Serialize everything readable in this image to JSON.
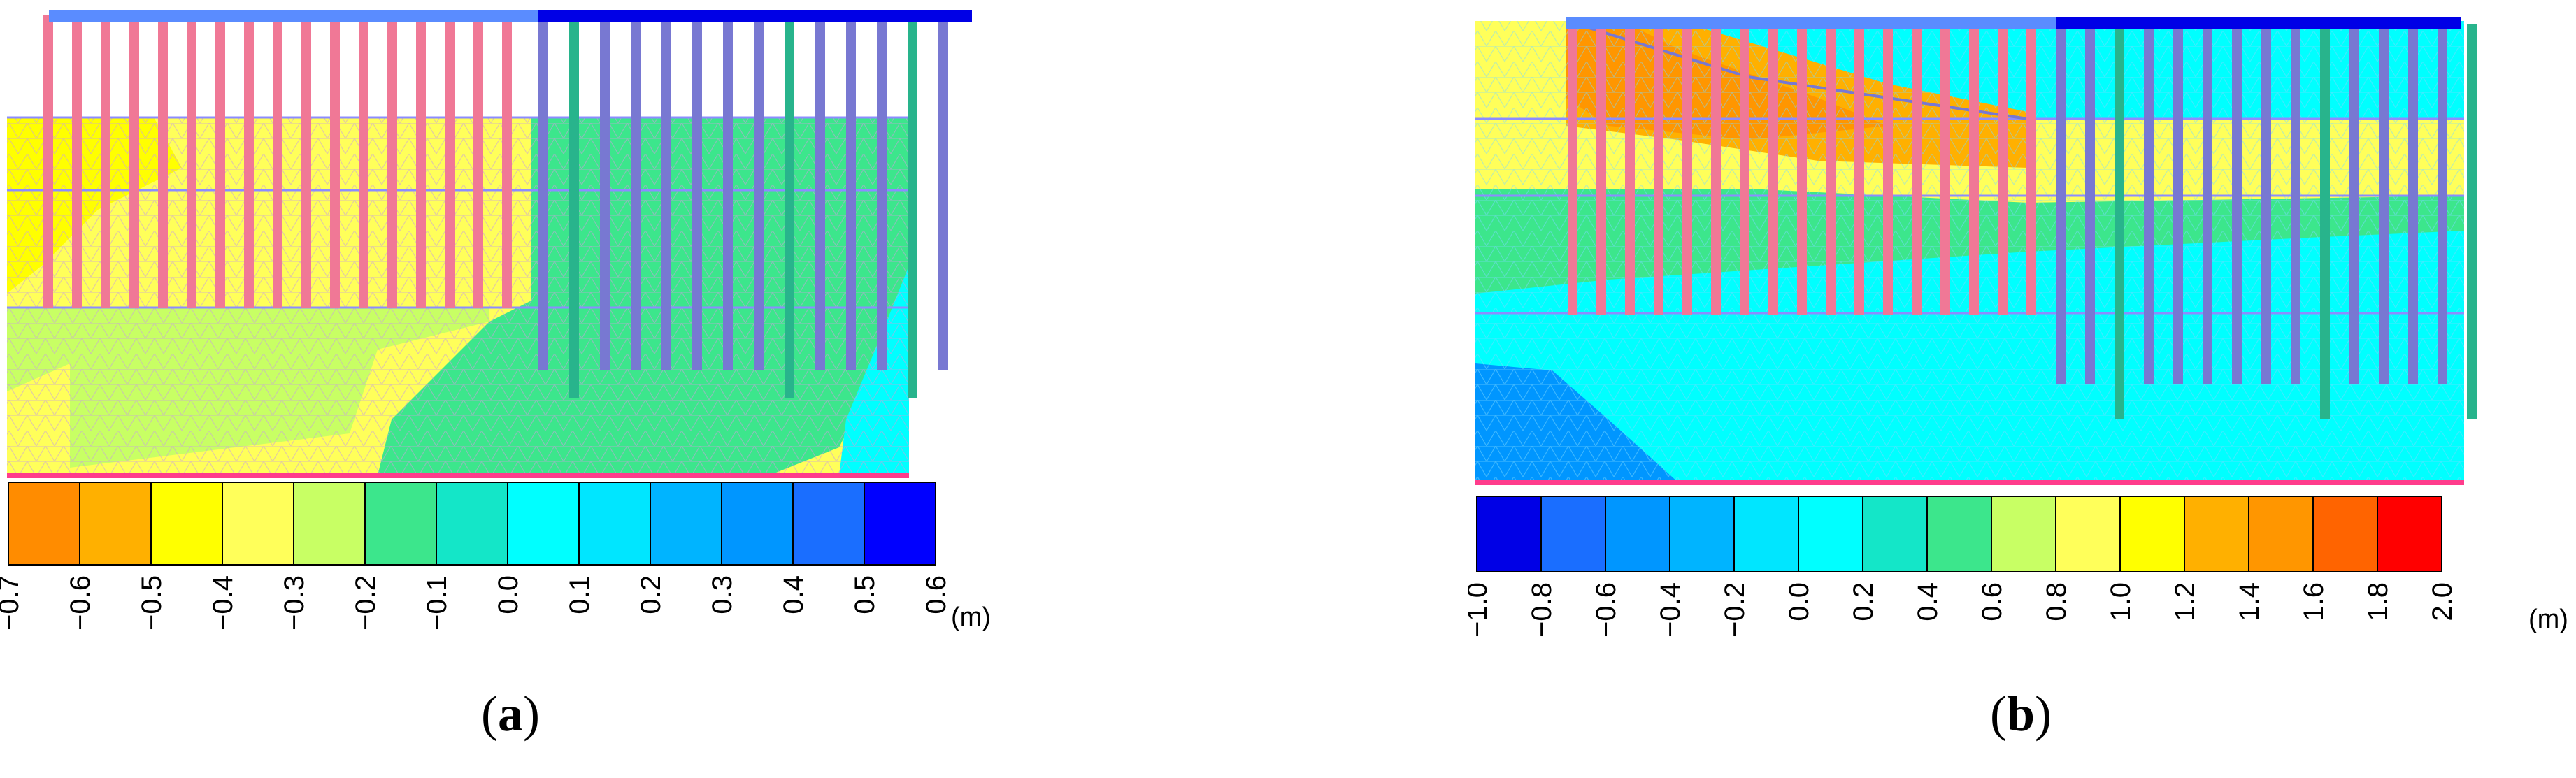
{
  "panels": [
    {
      "id": "a",
      "caption_open": "(",
      "caption_letter": "a",
      "caption_close": ")",
      "unit": "(m)",
      "legend_ticks": [
        "−0.7",
        "−0.6",
        "−0.5",
        "−0.4",
        "−0.3",
        "−0.2",
        "−0.1",
        "0.0",
        "0.1",
        "0.2",
        "0.3",
        "0.4",
        "0.5",
        "0.6"
      ],
      "legend_colors": [
        "#ff8c00",
        "#ffb000",
        "#ffff00",
        "#ffff5a",
        "#c8ff64",
        "#3ce68c",
        "#14e6c8",
        "#00ffff",
        "#00e6ff",
        "#00b4ff",
        "#0096ff",
        "#1a6eff",
        "#0000ff"
      ]
    },
    {
      "id": "b",
      "caption_open": "(",
      "caption_letter": "b",
      "caption_close": ")",
      "unit": "(m)",
      "legend_ticks": [
        "−1.0",
        "−0.8",
        "−0.6",
        "−0.4",
        "−0.2",
        "0.0",
        "0.2",
        "0.4",
        "0.6",
        "0.8",
        "1.0",
        "1.2",
        "1.4",
        "1.6",
        "1.8",
        "2.0"
      ],
      "legend_colors": [
        "#0000e6",
        "#1a6eff",
        "#0096ff",
        "#00b4ff",
        "#00e6ff",
        "#00ffff",
        "#14e6c8",
        "#3ce68c",
        "#c8ff64",
        "#ffff5a",
        "#ffff00",
        "#ffb000",
        "#ff9600",
        "#ff6400",
        "#ff0000"
      ]
    }
  ],
  "colors": {
    "pile_pink": "#f07896",
    "pile_purple": "#7878d2",
    "pile_teal": "#28b48c",
    "cap_light": "#5a8cff",
    "cap_dark": "#0000e6",
    "mesh_line": "#c8a0dc",
    "base_line": "#ff3c8c",
    "layer_line": "#8c8cff"
  }
}
